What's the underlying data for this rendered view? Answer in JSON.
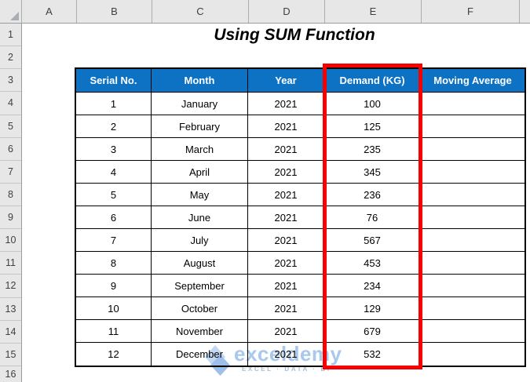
{
  "title": "Using SUM Function",
  "sheet": {
    "column_headers": [
      "A",
      "B",
      "C",
      "D",
      "E",
      "F"
    ],
    "row_headers": [
      "1",
      "2",
      "3",
      "4",
      "5",
      "6",
      "7",
      "8",
      "9",
      "10",
      "11",
      "12",
      "13",
      "14",
      "15",
      "16"
    ]
  },
  "table": {
    "headers": [
      "Serial No.",
      "Month",
      "Year",
      "Demand (KG)",
      "Moving Average"
    ],
    "rows": [
      {
        "serial": "1",
        "month": "January",
        "year": "2021",
        "demand": "100",
        "moving_average": ""
      },
      {
        "serial": "2",
        "month": "February",
        "year": "2021",
        "demand": "125",
        "moving_average": ""
      },
      {
        "serial": "3",
        "month": "March",
        "year": "2021",
        "demand": "235",
        "moving_average": ""
      },
      {
        "serial": "4",
        "month": "April",
        "year": "2021",
        "demand": "345",
        "moving_average": ""
      },
      {
        "serial": "5",
        "month": "May",
        "year": "2021",
        "demand": "236",
        "moving_average": ""
      },
      {
        "serial": "6",
        "month": "June",
        "year": "2021",
        "demand": "76",
        "moving_average": ""
      },
      {
        "serial": "7",
        "month": "July",
        "year": "2021",
        "demand": "567",
        "moving_average": ""
      },
      {
        "serial": "8",
        "month": "August",
        "year": "2021",
        "demand": "453",
        "moving_average": ""
      },
      {
        "serial": "9",
        "month": "September",
        "year": "2021",
        "demand": "234",
        "moving_average": ""
      },
      {
        "serial": "10",
        "month": "October",
        "year": "2021",
        "demand": "129",
        "moving_average": ""
      },
      {
        "serial": "11",
        "month": "November",
        "year": "2021",
        "demand": "679",
        "moving_average": ""
      },
      {
        "serial": "12",
        "month": "December",
        "year": "2021",
        "demand": "532",
        "moving_average": ""
      }
    ]
  },
  "highlight": {
    "target_column": "Demand (KG)"
  },
  "watermark": {
    "brand": "exceldemy",
    "tagline": "EXCEL · DATA · BI"
  },
  "colors": {
    "table_header_bg": "#0D72C4",
    "table_header_text": "#FFFFFF",
    "highlight_border": "#F70000",
    "watermark_brand_color": "#A8C8EC",
    "watermark_tagline_color": "#A9BFD4"
  }
}
